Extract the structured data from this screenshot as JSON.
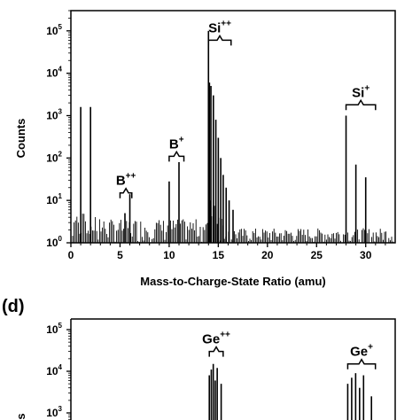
{
  "chart_data": [
    {
      "type": "bar",
      "scale_y": "log",
      "xlabel": "Mass-to-Charge-State Ratio (amu)",
      "ylabel": "Counts",
      "xlim": [
        0,
        33
      ],
      "ylim": [
        1,
        300000
      ],
      "x_ticks": [
        0,
        5,
        10,
        15,
        20,
        25,
        30
      ],
      "y_ticks": [
        {
          "base": "10",
          "exp": "0",
          "value": 1
        },
        {
          "base": "10",
          "exp": "1",
          "value": 10
        },
        {
          "base": "10",
          "exp": "2",
          "value": 100
        },
        {
          "base": "10",
          "exp": "3",
          "value": 1000
        },
        {
          "base": "10",
          "exp": "4",
          "value": 10000
        },
        {
          "base": "10",
          "exp": "5",
          "value": 100000
        }
      ],
      "annotations": [
        {
          "base": "Si",
          "sup": "++",
          "x_from": 14.0,
          "x_to": 16.3,
          "y": 60000
        },
        {
          "base": "B",
          "sup": "+",
          "x_from": 10.0,
          "x_to": 11.5,
          "y": 110
        },
        {
          "base": "B",
          "sup": "++",
          "x_from": 5.0,
          "x_to": 6.2,
          "y": 15
        },
        {
          "base": "Si",
          "sup": "+",
          "x_from": 28.0,
          "x_to": 31.0,
          "y": 1800
        }
      ],
      "peaks": [
        {
          "x": 1.0,
          "y": 1600
        },
        {
          "x": 2.0,
          "y": 1600
        },
        {
          "x": 5.5,
          "y": 5
        },
        {
          "x": 6.0,
          "y": 14
        },
        {
          "x": 10.0,
          "y": 28
        },
        {
          "x": 11.0,
          "y": 80
        },
        {
          "x": 14.0,
          "y": 100000
        },
        {
          "x": 14.1,
          "y": 6000
        },
        {
          "x": 14.25,
          "y": 5000
        },
        {
          "x": 14.5,
          "y": 3000
        },
        {
          "x": 14.75,
          "y": 800
        },
        {
          "x": 15.0,
          "y": 300
        },
        {
          "x": 15.25,
          "y": 100
        },
        {
          "x": 15.5,
          "y": 40
        },
        {
          "x": 15.8,
          "y": 20
        },
        {
          "x": 16.1,
          "y": 10
        },
        {
          "x": 16.5,
          "y": 6
        },
        {
          "x": 28.0,
          "y": 1000
        },
        {
          "x": 29.0,
          "y": 70
        },
        {
          "x": 30.0,
          "y": 35
        }
      ]
    },
    {
      "type": "bar",
      "panel_label": "(d)",
      "scale_y": "log",
      "ylim": [
        1,
        300000
      ],
      "y_ticks": [
        {
          "base": "10",
          "exp": "3",
          "value": 1000
        },
        {
          "base": "10",
          "exp": "4",
          "value": 10000
        },
        {
          "base": "10",
          "exp": "5",
          "value": 100000
        }
      ],
      "ylabel_fragment": "s",
      "annotations": [
        {
          "base": "Ge",
          "sup": "++",
          "x_from": 35.0,
          "x_to": 38.5,
          "y": 30000
        },
        {
          "base": "Ge",
          "sup": "+",
          "x_from": 70.0,
          "x_to": 77.0,
          "y": 15000
        }
      ],
      "peaks": [
        {
          "x": 35.0,
          "y": 8000
        },
        {
          "x": 35.5,
          "y": 11000
        },
        {
          "x": 36.0,
          "y": 15000
        },
        {
          "x": 36.5,
          "y": 6000
        },
        {
          "x": 37.0,
          "y": 12000
        },
        {
          "x": 38.0,
          "y": 5000
        },
        {
          "x": 70.0,
          "y": 5000
        },
        {
          "x": 71.0,
          "y": 7000
        },
        {
          "x": 72.0,
          "y": 9000
        },
        {
          "x": 73.0,
          "y": 4000
        },
        {
          "x": 74.0,
          "y": 8000
        },
        {
          "x": 76.0,
          "y": 2500
        }
      ]
    }
  ]
}
